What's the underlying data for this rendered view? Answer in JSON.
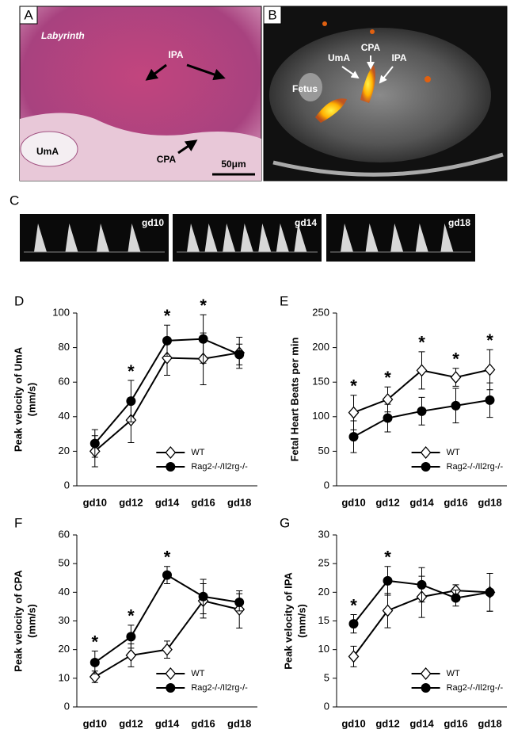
{
  "panels": {
    "A": {
      "label": "A",
      "region": "Labyrinth",
      "vessels": [
        "IPA",
        "UmA",
        "CPA"
      ],
      "scale": "50μm"
    },
    "B": {
      "label": "B",
      "fetus": "Fetus",
      "vessels": [
        "UmA",
        "CPA",
        "IPA"
      ]
    },
    "C": {
      "label": "C",
      "strips": [
        "gd10",
        "gd14",
        "gd18"
      ]
    }
  },
  "chart_data": [
    {
      "type": "line",
      "panel_label": "D",
      "ylabel": [
        "Peak velocity of UmA",
        "(mm/s)"
      ],
      "categories": [
        "gd10",
        "gd12",
        "gd14",
        "gd16",
        "gd18"
      ],
      "ylim": [
        0,
        100
      ],
      "yticks": [
        0,
        20,
        40,
        60,
        80,
        100
      ],
      "series": [
        {
          "name": "WT",
          "color": "#000000",
          "marker": "diamond",
          "values": [
            20,
            38,
            74,
            73.5,
            77
          ],
          "errors": [
            9,
            13,
            10,
            15,
            9
          ]
        },
        {
          "name": "Rag2-/-/Il2rg-/-",
          "color": "#000000",
          "marker": "circle",
          "values": [
            24.5,
            49,
            84,
            85,
            76
          ],
          "errors": [
            8,
            12,
            9,
            14,
            6
          ]
        }
      ],
      "significant": [
        false,
        true,
        true,
        true,
        false
      ],
      "significance_label": "*"
    },
    {
      "type": "line",
      "panel_label": "E",
      "ylabel": [
        "Fetal Heart Beats per min"
      ],
      "categories": [
        "gd10",
        "gd12",
        "gd14",
        "gd16",
        "gd18"
      ],
      "ylim": [
        0,
        250
      ],
      "yticks": [
        0,
        50,
        100,
        150,
        200,
        250
      ],
      "series": [
        {
          "name": "WT",
          "color": "#000000",
          "marker": "diamond",
          "values": [
            106,
            125,
            167,
            157,
            168
          ],
          "errors": [
            25,
            18,
            27,
            13,
            29
          ]
        },
        {
          "name": "Rag2-/-/Il2rg-/-",
          "color": "#000000",
          "marker": "circle",
          "values": [
            71,
            98,
            108,
            116,
            124
          ],
          "errors": [
            23,
            20,
            20,
            25,
            25
          ]
        }
      ],
      "significant": [
        true,
        true,
        true,
        true,
        true
      ],
      "significance_label": "*"
    },
    {
      "type": "line",
      "panel_label": "F",
      "ylabel": [
        "Peak velocity of CPA",
        "(mm/s)"
      ],
      "categories": [
        "gd10",
        "gd12",
        "gd14",
        "gd16",
        "gd18"
      ],
      "ylim": [
        0,
        60
      ],
      "yticks": [
        0,
        10,
        20,
        30,
        40,
        50,
        60
      ],
      "series": [
        {
          "name": "WT",
          "color": "#000000",
          "marker": "diamond",
          "values": [
            10.5,
            18,
            20,
            37,
            34
          ],
          "errors": [
            2,
            4,
            3,
            6,
            6.5
          ]
        },
        {
          "name": "Rag2-/-/Il2rg-/-",
          "color": "#000000",
          "marker": "circle",
          "values": [
            15.5,
            24.5,
            46,
            38.5,
            36.5
          ],
          "errors": [
            4,
            4,
            3,
            6,
            3
          ]
        }
      ],
      "significant": [
        true,
        true,
        true,
        false,
        false
      ],
      "significance_label": "*"
    },
    {
      "type": "line",
      "panel_label": "G",
      "ylabel": [
        "Peak velocity of IPA",
        "(mm/s)"
      ],
      "categories": [
        "gd10",
        "gd12",
        "gd14",
        "gd16",
        "gd18"
      ],
      "ylim": [
        0,
        30
      ],
      "yticks": [
        0,
        5,
        10,
        15,
        20,
        25,
        30
      ],
      "series": [
        {
          "name": "WT",
          "color": "#000000",
          "marker": "diamond",
          "values": [
            8.8,
            16.8,
            19.2,
            20.3,
            20
          ],
          "errors": [
            1.8,
            3,
            3.6,
            1,
            3.3
          ]
        },
        {
          "name": "Rag2-/-/Il2rg-/-",
          "color": "#000000",
          "marker": "circle",
          "values": [
            14.5,
            22,
            21.3,
            19,
            20
          ],
          "errors": [
            1.6,
            2.5,
            3,
            1.4,
            3.3
          ]
        }
      ],
      "significant": [
        true,
        true,
        false,
        false,
        false
      ],
      "significance_label": "*"
    }
  ]
}
